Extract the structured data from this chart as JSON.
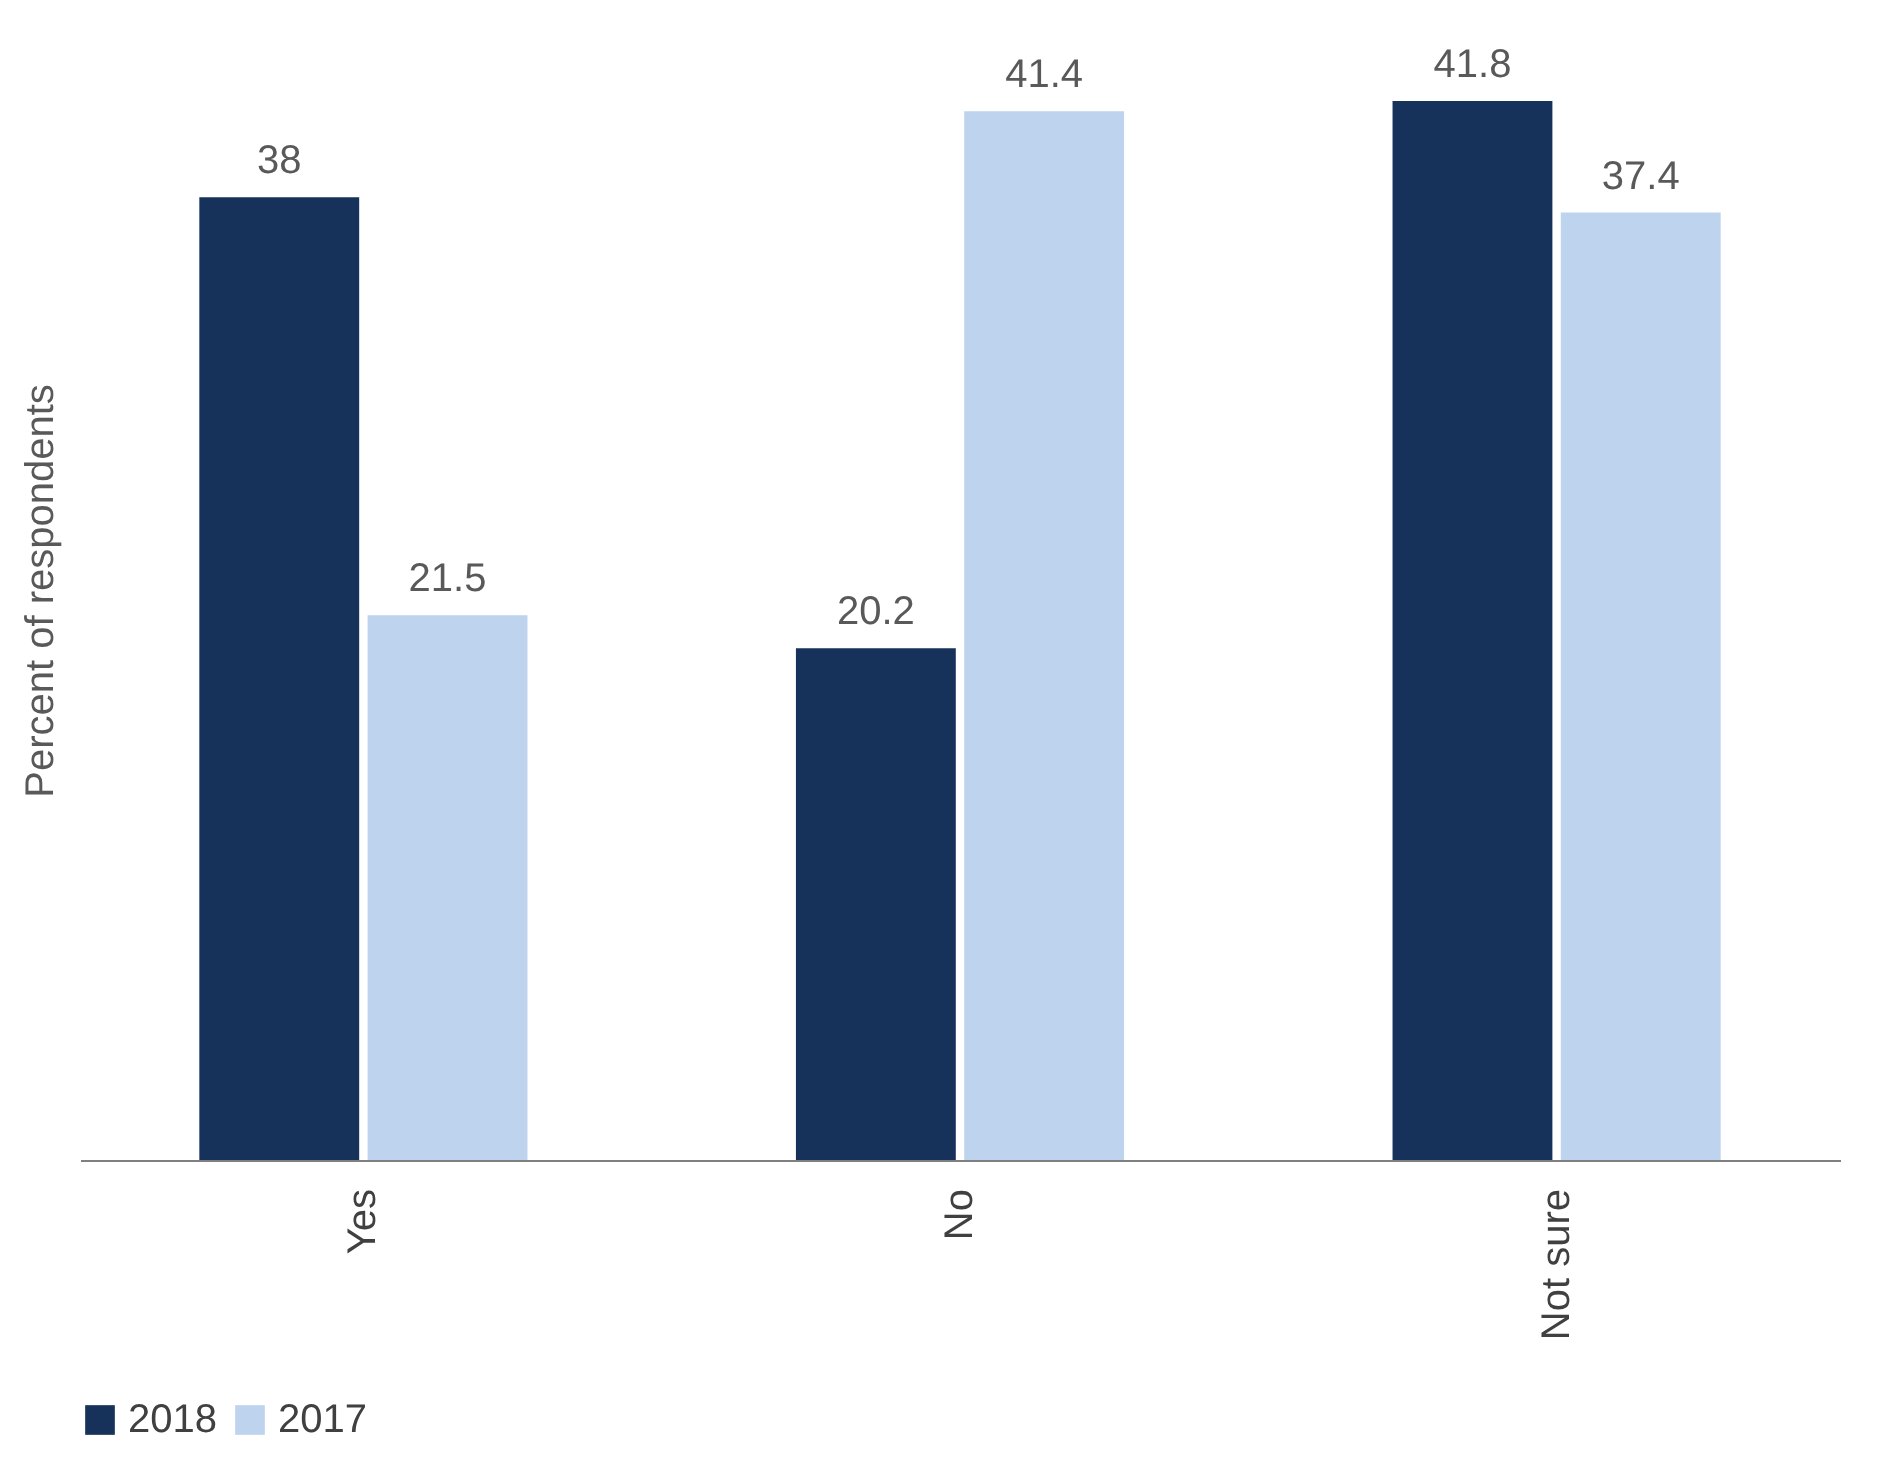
{
  "chart_data": {
    "type": "bar",
    "ylabel": "Percent of respondents",
    "categories": [
      "Yes",
      "No",
      "Not sure"
    ],
    "series": [
      {
        "name": "2018",
        "color": "#17325a",
        "values": [
          38,
          20.2,
          41.8
        ]
      },
      {
        "name": "2017",
        "color": "#bed3ee",
        "values": [
          21.5,
          41.4,
          37.4
        ]
      }
    ],
    "data_labels": true,
    "legend": "bottom",
    "tick_labels": "x"
  }
}
